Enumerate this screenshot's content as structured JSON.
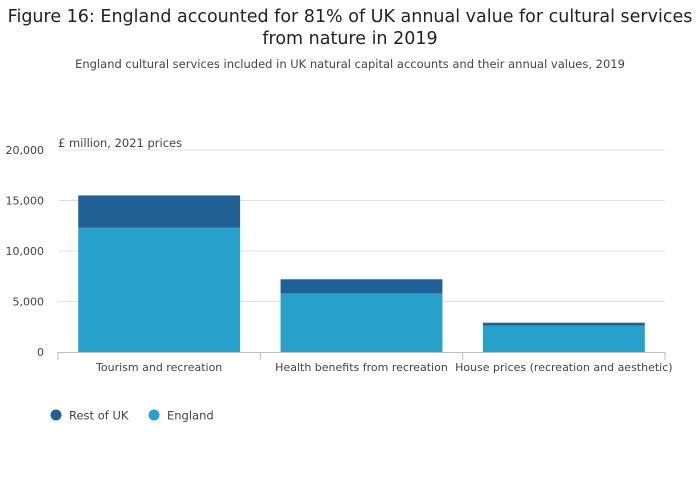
{
  "title": "Figure 16: England accounted for 81% of UK annual value for cultural services from nature in 2019",
  "subtitle": "England cultural services included in UK natural capital accounts and their annual values, 2019",
  "chart_data": {
    "type": "bar",
    "stacked": true,
    "title": "Figure 16: England accounted for 81% of UK annual value for cultural services from nature in 2019",
    "subtitle": "England cultural services included in UK natural capital accounts and their annual values, 2019",
    "unit_label": "£ million, 2021 prices",
    "xlabel": "",
    "ylabel": "",
    "ylim": [
      0,
      20000
    ],
    "y_ticks": [
      0,
      5000,
      10000,
      15000,
      20000
    ],
    "y_tick_labels": [
      "0",
      "5,000",
      "10,000",
      "15,000",
      "20,000"
    ],
    "grid": true,
    "legend_position": "bottom-left",
    "categories": [
      "Tourism and recreation",
      "Health benefits from recreation",
      "House prices (recreation and aesthetic)"
    ],
    "series": [
      {
        "name": "England",
        "color": "#27a0cc",
        "values": [
          12300,
          5800,
          2600
        ]
      },
      {
        "name": "Rest of UK",
        "color": "#206095",
        "values": [
          3200,
          1400,
          300
        ]
      }
    ],
    "legend": [
      {
        "name": "Rest of UK",
        "color": "#206095"
      },
      {
        "name": "England",
        "color": "#27a0cc"
      }
    ]
  }
}
